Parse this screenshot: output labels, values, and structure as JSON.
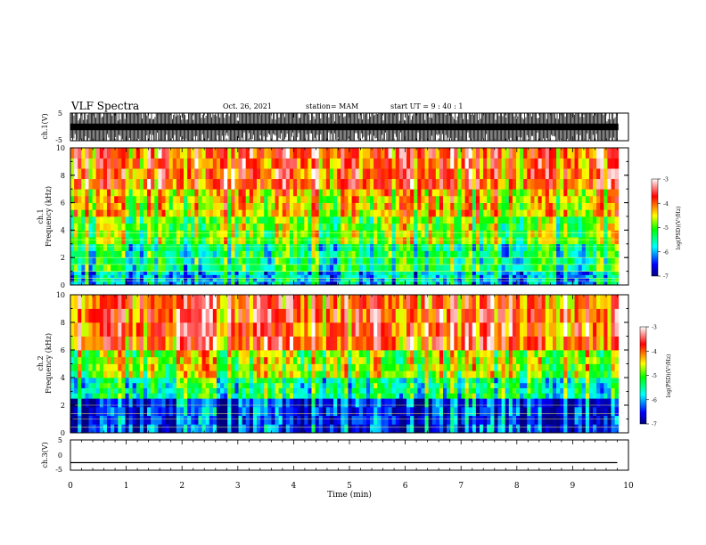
{
  "header": {
    "title": "VLF Spectra",
    "date": "Oct. 26, 2021",
    "station": "station= MAM",
    "start": "start  UT =   9 : 40 : 1"
  },
  "colors": {
    "background": "#ffffff",
    "axis": "#000000",
    "colormap": [
      "#000080",
      "#0000ff",
      "#00ffff",
      "#00ff00",
      "#ffff00",
      "#ff0000",
      "#ffffff"
    ]
  },
  "chart_data": [
    {
      "type": "line",
      "id": "ch1-waveform",
      "ylabel": "ch.1(V)",
      "ylim": [
        -5,
        5
      ],
      "yticks": [
        "5",
        "-5"
      ],
      "description_values": "dense vertical bursts spanning the full ±5 V range"
    },
    {
      "type": "heatmap",
      "id": "ch1-spectrogram",
      "ylabel_top": "ch.1",
      "ylabel": "Frequency  (kHz)",
      "ylim": [
        0,
        10
      ],
      "yticks": [
        "0",
        "2",
        "4",
        "6",
        "8",
        "10"
      ],
      "xlim": [
        0,
        10
      ],
      "colorbar": {
        "label": "log(PSD)(V²/Hz)",
        "range": [
          -7,
          -3
        ],
        "ticks": [
          "-3",
          "-4",
          "-5",
          "-6",
          "-7"
        ]
      },
      "bands": [
        {
          "freq_kHz": [
            0,
            1
          ],
          "log_psd": -5.9
        },
        {
          "freq_kHz": [
            1,
            3
          ],
          "log_psd": -5.4
        },
        {
          "freq_kHz": [
            3,
            5
          ],
          "log_psd": -4.9
        },
        {
          "freq_kHz": [
            5,
            7
          ],
          "log_psd": -4.4
        },
        {
          "freq_kHz": [
            7,
            10
          ],
          "log_psd": -3.9
        }
      ],
      "narrowband_lines_kHz": [
        0.3,
        0.5,
        1.0,
        1.5,
        2.0,
        2.8,
        3.3,
        3.8
      ]
    },
    {
      "type": "heatmap",
      "id": "ch2-spectrogram",
      "ylabel_top": "ch.2",
      "ylabel": "Frequency  (kHz)",
      "ylim": [
        0,
        10
      ],
      "yticks": [
        "0",
        "2",
        "4",
        "6",
        "8",
        "10"
      ],
      "xlim": [
        0,
        10
      ],
      "colorbar": {
        "label": "log(PSD)(V²/Hz)",
        "range": [
          -7,
          -3
        ],
        "ticks": [
          "-3",
          "-4",
          "-5",
          "-6",
          "-7"
        ]
      },
      "bands": [
        {
          "freq_kHz": [
            0,
            2.5
          ],
          "log_psd": -6.4
        },
        {
          "freq_kHz": [
            2.5,
            4
          ],
          "log_psd": -5.4
        },
        {
          "freq_kHz": [
            4,
            6
          ],
          "log_psd": -4.7
        },
        {
          "freq_kHz": [
            6,
            10
          ],
          "log_psd": -3.8
        }
      ],
      "narrowband_lines_kHz": [
        0.4,
        1.0,
        1.4,
        2.0
      ]
    },
    {
      "type": "line",
      "id": "ch3-waveform",
      "ylabel": "ch.3(V)",
      "ylim": [
        -5,
        5
      ],
      "yticks": [
        "5",
        "0",
        "-5"
      ],
      "x": [
        0,
        9.8
      ],
      "y": [
        -2.5,
        -2.5
      ]
    }
  ],
  "x_axis": {
    "label": "Time  (min)",
    "range": [
      0,
      10
    ],
    "ticks": [
      "0",
      "1",
      "2",
      "3",
      "4",
      "5",
      "6",
      "7",
      "8",
      "9",
      "10"
    ]
  }
}
